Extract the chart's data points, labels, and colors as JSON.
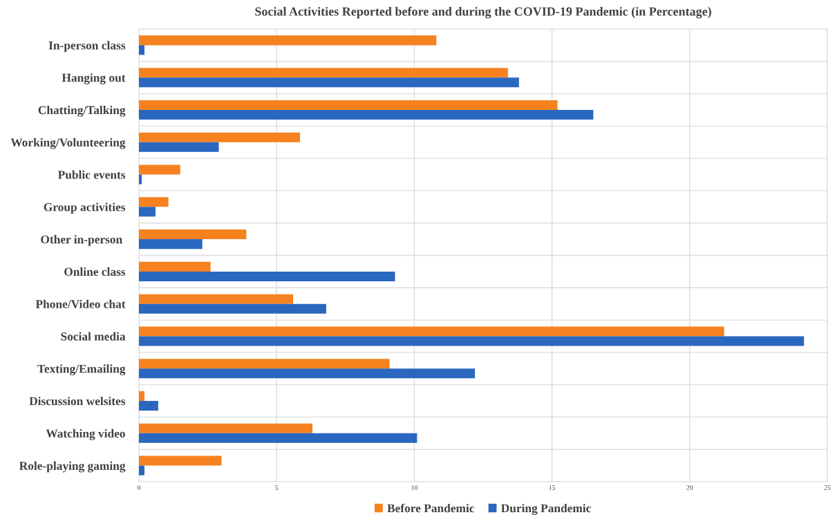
{
  "chart_data": {
    "type": "bar",
    "orientation": "horizontal",
    "title": "Social Activities Reported before and during the COVID-19 Pandemic (in Percentage)",
    "categories": [
      "In-person class",
      "Hanging out",
      "Chatting/Talking",
      "Working/Volunteering",
      "Public events",
      "Group activities",
      "Other in-person ",
      "Online class",
      "Phone/Video chat",
      "Social media",
      "Texting/Emailing",
      "Discussion welsites",
      "Watching video",
      "Role-playing gaming"
    ],
    "series": [
      {
        "name": "Before Pandemic",
        "color": "#f5821f",
        "values": [
          10.8,
          13.4,
          15.2,
          5.85,
          1.5,
          1.07,
          3.9,
          2.6,
          5.6,
          21.25,
          9.1,
          0.2,
          6.3,
          3.0
        ]
      },
      {
        "name": "During Pandemic",
        "color": "#2a67bf",
        "values": [
          0.2,
          13.8,
          16.5,
          2.9,
          0.1,
          0.6,
          2.3,
          9.3,
          6.8,
          24.15,
          12.2,
          0.7,
          10.1,
          0.2
        ]
      }
    ],
    "xlim": [
      0,
      25
    ],
    "xticks": [
      0,
      5,
      10,
      15,
      20,
      25
    ],
    "grid": true,
    "legend": "bottom"
  }
}
